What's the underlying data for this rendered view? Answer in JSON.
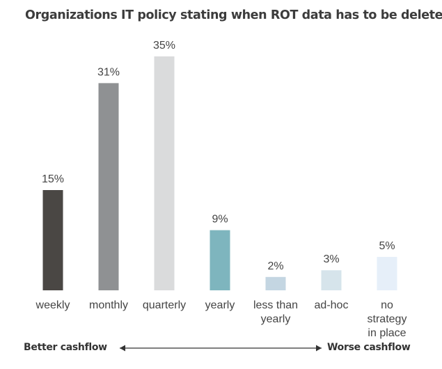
{
  "chart_data": {
    "type": "bar",
    "title": "Organizations IT policy stating when ROT data has to be deleted",
    "categories": [
      [
        "weekly"
      ],
      [
        "monthly"
      ],
      [
        "quarterly"
      ],
      [
        "yearly"
      ],
      [
        "less than",
        "yearly"
      ],
      [
        "ad-hoc"
      ],
      [
        "no",
        "strategy",
        "in place"
      ]
    ],
    "values": [
      15,
      31,
      35,
      9,
      2,
      3,
      5
    ],
    "value_labels": [
      "15%",
      "31%",
      "35%",
      "9%",
      "2%",
      "3%",
      "5%"
    ],
    "unit": "%",
    "bar_colors": [
      "#4a4744",
      "#8f9193",
      "#dadbdc",
      "#7eb5be",
      "#c4d6e2",
      "#d6e4eb",
      "#e6eff9"
    ],
    "xlabel": "",
    "ylabel": "",
    "grid": false,
    "legend": "none"
  },
  "footer": {
    "left_label": "Better cashflow",
    "right_label": "Worse cashflow"
  }
}
